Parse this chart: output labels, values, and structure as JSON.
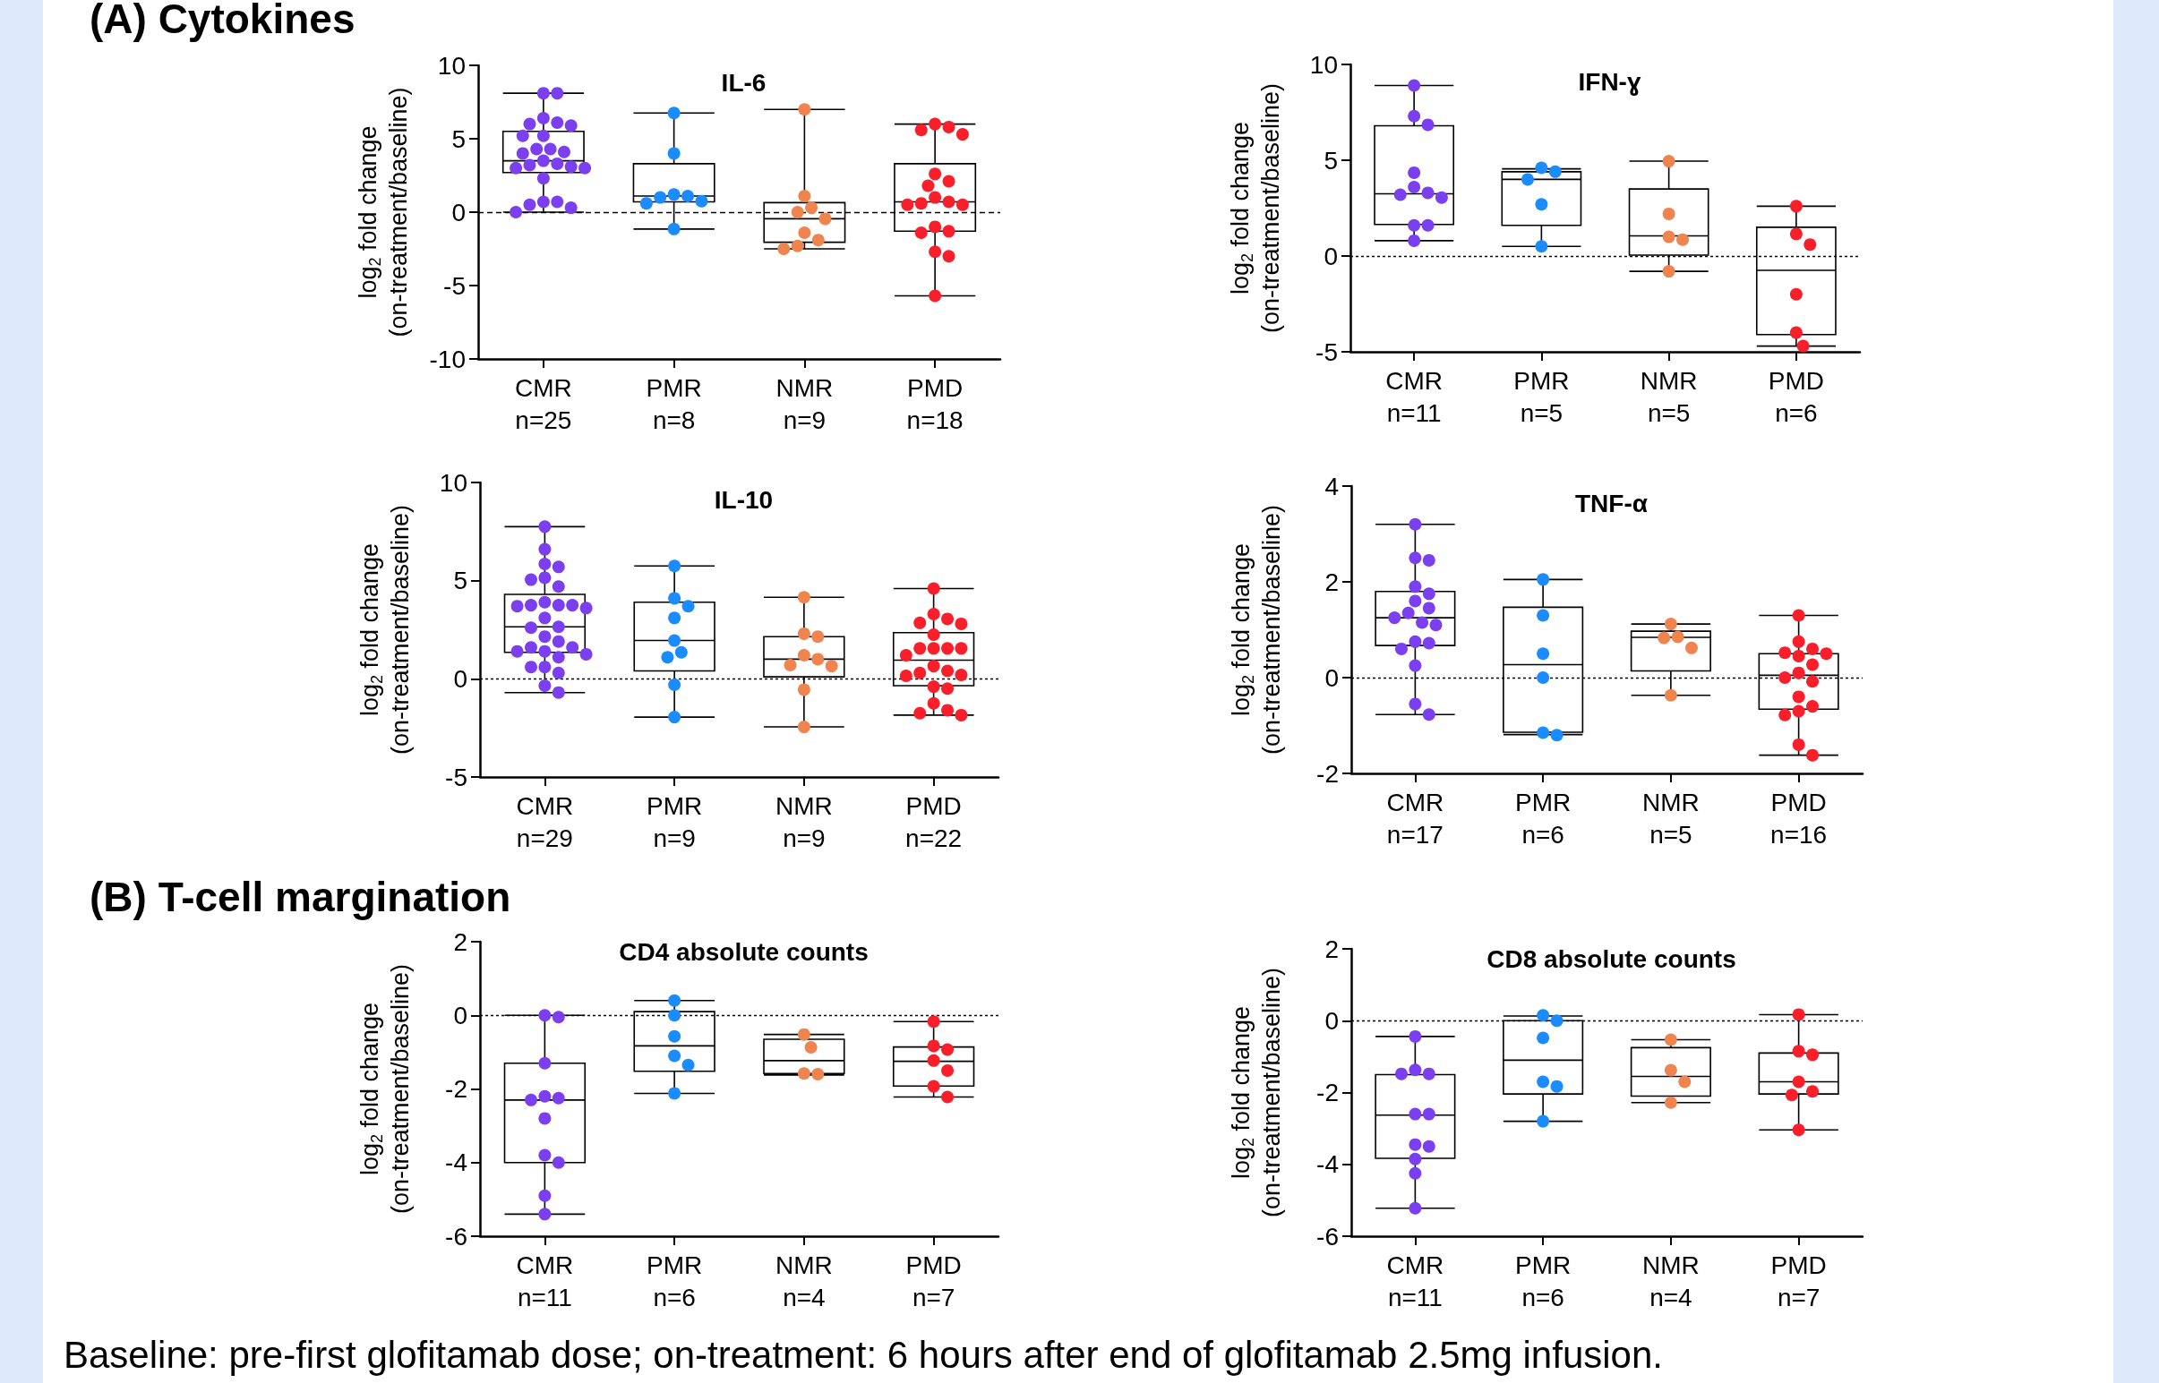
{
  "chart_data": [
    {
      "type": "box",
      "title": "IL-6",
      "subtitle": "(A) Cytokines",
      "ylabel": "log$_{2}$ fold change\n(on-treatment/baseline)",
      "categories": [
        "CMR\nn=25",
        "PMR\nn=8",
        "NMR\nn=9",
        "PMD\nn=18"
      ],
      "boxes": [
        {
          "low": 0.0,
          "q1": 2.7,
          "median": 3.5,
          "q3": 5.5,
          "high": 8.1
        },
        {
          "low": -1.15,
          "q1": 0.7,
          "median": 1.1,
          "q3": 3.3,
          "high": 6.75
        },
        {
          "low": -2.5,
          "q1": -2.05,
          "median": -0.45,
          "q3": 0.65,
          "high": 7.0
        },
        {
          "low": -5.7,
          "q1": -1.3,
          "median": 0.7,
          "q3": 3.3,
          "high": 6.0
        }
      ],
      "series": [
        {
          "type": "scatter",
          "color": "#7b3ff0",
          "x": [
            "CMR\nn=25",
            "CMR\nn=25",
            "CMR\nn=25",
            "CMR\nn=25",
            "CMR\nn=25",
            "CMR\nn=25",
            "CMR\nn=25",
            "CMR\nn=25",
            "CMR\nn=25",
            "CMR\nn=25",
            "CMR\nn=25",
            "CMR\nn=25",
            "CMR\nn=25",
            "CMR\nn=25",
            "CMR\nn=25",
            "CMR\nn=25",
            "CMR\nn=25",
            "CMR\nn=25",
            "CMR\nn=25",
            "CMR\nn=25",
            "CMR\nn=25",
            "CMR\nn=25",
            "CMR\nn=25",
            "CMR\nn=25"
          ],
          "values": [
            8.1,
            8.1,
            6.1,
            6.4,
            5.9,
            6.0,
            5.2,
            5.2,
            4.1,
            4.3,
            4.0,
            4.3,
            3.1,
            3.3,
            3.0,
            3.0,
            3.2,
            3.5,
            2.3,
            0.7,
            0.5,
            0.3,
            0.7,
            0.0
          ]
        },
        {
          "type": "scatter",
          "color": "#1a8cff",
          "x": [
            "PMR\nn=8",
            "PMR\nn=8",
            "PMR\nn=8",
            "PMR\nn=8",
            "PMR\nn=8",
            "PMR\nn=8",
            "PMR\nn=8",
            "PMR\nn=8"
          ],
          "values": [
            6.75,
            4.0,
            1.1,
            1.2,
            1.0,
            0.75,
            0.6,
            -1.15
          ]
        },
        {
          "type": "scatter",
          "color": "#f0844f",
          "x": [
            "NMR\nn=9",
            "NMR\nn=9",
            "NMR\nn=9",
            "NMR\nn=9",
            "NMR\nn=9",
            "NMR\nn=9",
            "NMR\nn=9",
            "NMR\nn=9",
            "NMR\nn=9"
          ],
          "values": [
            7.0,
            1.1,
            0.3,
            0.0,
            -0.45,
            -1.4,
            -1.9,
            -2.3,
            -2.5
          ]
        },
        {
          "type": "scatter",
          "color": "#f81f2a",
          "x": [
            "PMD\nn=18",
            "PMD\nn=18",
            "PMD\nn=18",
            "PMD\nn=18",
            "PMD\nn=18",
            "PMD\nn=18",
            "PMD\nn=18",
            "PMD\nn=18",
            "PMD\nn=18",
            "PMD\nn=18",
            "PMD\nn=18",
            "PMD\nn=18",
            "PMD\nn=18",
            "PMD\nn=18",
            "PMD\nn=18",
            "PMD\nn=18",
            "PMD\nn=18",
            "PMD\nn=18"
          ],
          "values": [
            6.0,
            5.8,
            5.6,
            5.3,
            2.6,
            1.8,
            2.1,
            1.0,
            0.7,
            0.5,
            0.5,
            0.6,
            -1.0,
            -1.4,
            -1.3,
            -3.0,
            -2.7,
            -5.7
          ]
        }
      ],
      "ylim": [
        -10,
        10
      ],
      "yticks": [
        -10,
        -5,
        0,
        5,
        10
      ],
      "ref_lines": [
        {
          "axis": "y",
          "value": 0,
          "line_style": "dashed"
        }
      ],
      "marker": "circle"
    },
    {
      "type": "box",
      "title": "IFN-ɣ",
      "ylabel": "log$_{2}$ fold change\n(on-treatment/baseline)",
      "categories": [
        "CMR\nn=11",
        "PMR\nn=5",
        "NMR\nn=5",
        "PMD\nn=6"
      ],
      "boxes": [
        {
          "low": 0.8,
          "q1": 1.65,
          "median": 3.25,
          "q3": 6.8,
          "high": 8.9
        },
        {
          "low": 0.5,
          "q1": 1.6,
          "median": 4.0,
          "q3": 4.4,
          "high": 4.55
        },
        {
          "low": -0.8,
          "q1": 0.05,
          "median": 1.05,
          "q3": 3.5,
          "high": 4.95
        },
        {
          "low": -4.7,
          "q1": -4.1,
          "median": -0.75,
          "q3": 1.5,
          "high": 2.6
        }
      ],
      "series": [
        {
          "type": "scatter",
          "color": "#7b3ff0",
          "x": [
            "CMR\nn=11",
            "CMR\nn=11",
            "CMR\nn=11",
            "CMR\nn=11",
            "CMR\nn=11",
            "CMR\nn=11",
            "CMR\nn=11",
            "CMR\nn=11",
            "CMR\nn=11",
            "CMR\nn=11",
            "CMR\nn=11"
          ],
          "values": [
            8.9,
            7.3,
            6.85,
            4.35,
            3.6,
            3.2,
            3.05,
            3.3,
            1.6,
            1.6,
            0.8
          ]
        },
        {
          "type": "scatter",
          "color": "#1a8cff",
          "x": [
            "PMR\nn=5",
            "PMR\nn=5",
            "PMR\nn=5",
            "PMR\nn=5",
            "PMR\nn=5"
          ],
          "values": [
            4.6,
            4.4,
            4.0,
            2.7,
            0.5
          ]
        },
        {
          "type": "scatter",
          "color": "#f0844f",
          "x": [
            "NMR\nn=5",
            "NMR\nn=5",
            "NMR\nn=5",
            "NMR\nn=5",
            "NMR\nn=5"
          ],
          "values": [
            4.95,
            2.2,
            1.0,
            0.85,
            -0.8
          ]
        },
        {
          "type": "scatter",
          "color": "#f81f2a",
          "x": [
            "PMD\nn=6",
            "PMD\nn=6",
            "PMD\nn=6",
            "PMD\nn=6",
            "PMD\nn=6",
            "PMD\nn=6"
          ],
          "values": [
            2.6,
            1.15,
            0.6,
            -2.0,
            -4.0,
            -4.7
          ]
        }
      ],
      "ylim": [
        -5,
        10
      ],
      "yticks": [
        -5,
        0,
        5,
        10
      ],
      "ref_lines": [
        {
          "axis": "y",
          "value": 0,
          "line_style": "dotted"
        }
      ],
      "marker": "circle"
    },
    {
      "type": "box",
      "title": "IL-10",
      "ylabel": "log$_{2}$ fold change\n(on-treatment/baseline)",
      "categories": [
        "CMR\nn=29",
        "PMR\nn=9",
        "NMR\nn=9",
        "PMD\nn=22"
      ],
      "boxes": [
        {
          "low": -0.7,
          "q1": 1.35,
          "median": 2.65,
          "q3": 4.3,
          "high": 7.75
        },
        {
          "low": -1.95,
          "q1": 0.4,
          "median": 1.95,
          "q3": 3.9,
          "high": 5.75
        },
        {
          "low": -2.45,
          "q1": 0.1,
          "median": 1.0,
          "q3": 2.15,
          "high": 4.15
        },
        {
          "low": -1.85,
          "q1": -0.35,
          "median": 0.95,
          "q3": 2.35,
          "high": 4.6
        }
      ],
      "series": [
        {
          "type": "scatter",
          "color": "#7b3ff0",
          "x": [
            "CMR\nn=29",
            "CMR\nn=29",
            "CMR\nn=29",
            "CMR\nn=29",
            "CMR\nn=29",
            "CMR\nn=29",
            "CMR\nn=29",
            "CMR\nn=29",
            "CMR\nn=29",
            "CMR\nn=29",
            "CMR\nn=29",
            "CMR\nn=29",
            "CMR\nn=29",
            "CMR\nn=29",
            "CMR\nn=29",
            "CMR\nn=29",
            "CMR\nn=29",
            "CMR\nn=29",
            "CMR\nn=29",
            "CMR\nn=29",
            "CMR\nn=29",
            "CMR\nn=29",
            "CMR\nn=29",
            "CMR\nn=29",
            "CMR\nn=29",
            "CMR\nn=29",
            "CMR\nn=29",
            "CMR\nn=29",
            "CMR\nn=29"
          ],
          "values": [
            7.75,
            6.6,
            5.85,
            5.7,
            5.15,
            5.05,
            4.7,
            3.75,
            3.75,
            3.6,
            3.7,
            3.9,
            3.75,
            3.1,
            2.6,
            2.65,
            2.15,
            1.9,
            1.6,
            1.4,
            1.25,
            1.6,
            1.4,
            1.1,
            0.6,
            0.6,
            0.3,
            -0.35,
            -0.7
          ]
        },
        {
          "type": "scatter",
          "color": "#1a8cff",
          "x": [
            "PMR\nn=9",
            "PMR\nn=9",
            "PMR\nn=9",
            "PMR\nn=9",
            "PMR\nn=9",
            "PMR\nn=9",
            "PMR\nn=9",
            "PMR\nn=9",
            "PMR\nn=9"
          ],
          "values": [
            5.75,
            4.1,
            3.7,
            3.1,
            1.95,
            1.35,
            1.1,
            -0.3,
            -1.95
          ]
        },
        {
          "type": "scatter",
          "color": "#f0844f",
          "x": [
            "NMR\nn=9",
            "NMR\nn=9",
            "NMR\nn=9",
            "NMR\nn=9",
            "NMR\nn=9",
            "NMR\nn=9",
            "NMR\nn=9",
            "NMR\nn=9",
            "NMR\nn=9"
          ],
          "values": [
            4.15,
            2.15,
            2.3,
            1.2,
            1.0,
            0.65,
            0.7,
            -0.55,
            -2.45
          ]
        },
        {
          "type": "scatter",
          "color": "#f81f2a",
          "x": [
            "PMD\nn=22",
            "PMD\nn=22",
            "PMD\nn=22",
            "PMD\nn=22",
            "PMD\nn=22",
            "PMD\nn=22",
            "PMD\nn=22",
            "PMD\nn=22",
            "PMD\nn=22",
            "PMD\nn=22",
            "PMD\nn=22",
            "PMD\nn=22",
            "PMD\nn=22",
            "PMD\nn=22",
            "PMD\nn=22",
            "PMD\nn=22",
            "PMD\nn=22",
            "PMD\nn=22",
            "PMD\nn=22",
            "PMD\nn=22",
            "PMD\nn=22",
            "PMD\nn=22"
          ],
          "values": [
            4.6,
            3.05,
            3.3,
            2.8,
            2.85,
            2.25,
            1.55,
            1.55,
            1.2,
            1.55,
            1.55,
            0.65,
            0.3,
            0.15,
            0.2,
            0.4,
            -0.4,
            -0.5,
            -1.25,
            -1.6,
            -1.75,
            -1.85
          ]
        }
      ],
      "ylim": [
        -5,
        10
      ],
      "yticks": [
        -5,
        0,
        5,
        10
      ],
      "ref_lines": [
        {
          "axis": "y",
          "value": 0,
          "line_style": "dotted"
        }
      ],
      "marker": "circle"
    },
    {
      "type": "box",
      "title": "TNF-α",
      "ylabel": "log$_{2}$ fold change\n(on-treatment/baseline)",
      "categories": [
        "CMR\nn=17",
        "PMR\nn=6",
        "NMR\nn=5",
        "PMD\nn=16"
      ],
      "boxes": [
        {
          "low": -0.77,
          "q1": 0.67,
          "median": 1.25,
          "q3": 1.8,
          "high": 3.2
        },
        {
          "low": -1.19,
          "q1": -1.14,
          "median": 0.27,
          "q3": 1.47,
          "high": 2.05
        },
        {
          "low": -0.37,
          "q1": 0.14,
          "median": 0.84,
          "q3": 0.97,
          "high": 1.12
        },
        {
          "low": -1.62,
          "q1": -0.66,
          "median": 0.05,
          "q3": 0.5,
          "high": 1.3
        }
      ],
      "series": [
        {
          "type": "scatter",
          "color": "#7b3ff0",
          "x": [
            "CMR\nn=17",
            "CMR\nn=17",
            "CMR\nn=17",
            "CMR\nn=17",
            "CMR\nn=17",
            "CMR\nn=17",
            "CMR\nn=17",
            "CMR\nn=17",
            "CMR\nn=17",
            "CMR\nn=17",
            "CMR\nn=17",
            "CMR\nn=17",
            "CMR\nn=17",
            "CMR\nn=17",
            "CMR\nn=17",
            "CMR\nn=17",
            "CMR\nn=17"
          ],
          "values": [
            3.2,
            2.5,
            2.45,
            1.9,
            1.75,
            1.6,
            1.45,
            1.35,
            1.25,
            1.15,
            1.1,
            0.75,
            0.72,
            0.6,
            0.25,
            -0.55,
            -0.77
          ]
        },
        {
          "type": "scatter",
          "color": "#1a8cff",
          "x": [
            "PMR\nn=6",
            "PMR\nn=6",
            "PMR\nn=6",
            "PMR\nn=6",
            "PMR\nn=6",
            "PMR\nn=6"
          ],
          "values": [
            2.05,
            1.3,
            0.5,
            0.0,
            -1.2,
            -1.15
          ]
        },
        {
          "type": "scatter",
          "color": "#f0844f",
          "x": [
            "NMR\nn=5",
            "NMR\nn=5",
            "NMR\nn=5",
            "NMR\nn=5",
            "NMR\nn=5"
          ],
          "values": [
            1.12,
            0.83,
            0.85,
            0.62,
            -0.37
          ]
        },
        {
          "type": "scatter",
          "color": "#f81f2a",
          "x": [
            "PMD\nn=16",
            "PMD\nn=16",
            "PMD\nn=16",
            "PMD\nn=16",
            "PMD\nn=16",
            "PMD\nn=16",
            "PMD\nn=16",
            "PMD\nn=16",
            "PMD\nn=16",
            "PMD\nn=16",
            "PMD\nn=16",
            "PMD\nn=16",
            "PMD\nn=16",
            "PMD\nn=16",
            "PMD\nn=16",
            "PMD\nn=16"
          ],
          "values": [
            1.3,
            0.75,
            0.6,
            0.52,
            0.5,
            0.45,
            0.27,
            0.1,
            0.0,
            -0.08,
            -0.4,
            -0.6,
            -0.7,
            -0.78,
            -1.4,
            -1.62
          ]
        }
      ],
      "ylim": [
        -2,
        4
      ],
      "yticks": [
        -2,
        0,
        2,
        4
      ],
      "ref_lines": [
        {
          "axis": "y",
          "value": 0,
          "line_style": "dotted"
        }
      ],
      "marker": "circle"
    },
    {
      "type": "box",
      "title": "CD4 absolute counts",
      "subtitle": "(B) T-cell margination",
      "ylabel": "log$_{2}$ fold change\n(on-treatment/baseline)",
      "categories": [
        "CMR\nn=11",
        "PMR\nn=6",
        "NMR\nn=4",
        "PMD\nn=7"
      ],
      "boxes": [
        {
          "low": -5.4,
          "q1": -4.0,
          "median": -2.3,
          "q3": -1.3,
          "high": 0.0
        },
        {
          "low": -2.12,
          "q1": -1.52,
          "median": -0.83,
          "q3": 0.1,
          "high": 0.4
        },
        {
          "low": -1.62,
          "q1": -1.58,
          "median": -1.23,
          "q3": -0.65,
          "high": -0.52
        },
        {
          "low": -2.22,
          "q1": -1.92,
          "median": -1.25,
          "q3": -0.86,
          "high": -0.17
        }
      ],
      "series": [
        {
          "type": "scatter",
          "color": "#7b3ff0",
          "x": [
            "CMR\nn=11",
            "CMR\nn=11",
            "CMR\nn=11",
            "CMR\nn=11",
            "CMR\nn=11",
            "CMR\nn=11",
            "CMR\nn=11",
            "CMR\nn=11",
            "CMR\nn=11",
            "CMR\nn=11",
            "CMR\nn=11"
          ],
          "values": [
            0.0,
            -0.05,
            -1.3,
            -2.25,
            -2.3,
            -2.2,
            -2.8,
            -3.8,
            -4.0,
            -4.9,
            -5.4
          ]
        },
        {
          "type": "scatter",
          "color": "#1a8cff",
          "x": [
            "PMR\nn=6",
            "PMR\nn=6",
            "PMR\nn=6",
            "PMR\nn=6",
            "PMR\nn=6",
            "PMR\nn=6"
          ],
          "values": [
            0.4,
            0.0,
            -0.57,
            -1.1,
            -1.35,
            -2.12
          ]
        },
        {
          "type": "scatter",
          "color": "#f0844f",
          "x": [
            "NMR\nn=4",
            "NMR\nn=4",
            "NMR\nn=4",
            "NMR\nn=4"
          ],
          "values": [
            -0.52,
            -0.87,
            -1.58,
            -1.6
          ]
        },
        {
          "type": "scatter",
          "color": "#f81f2a",
          "x": [
            "PMD\nn=7",
            "PMD\nn=7",
            "PMD\nn=7",
            "PMD\nn=7",
            "PMD\nn=7",
            "PMD\nn=7",
            "PMD\nn=7"
          ],
          "values": [
            -0.17,
            -0.83,
            -0.93,
            -1.23,
            -1.5,
            -1.93,
            -2.22
          ]
        }
      ],
      "ylim": [
        -6,
        2
      ],
      "yticks": [
        -6,
        -4,
        -2,
        0,
        2
      ],
      "ref_lines": [
        {
          "axis": "y",
          "value": 0,
          "line_style": "dotted"
        }
      ],
      "marker": "circle"
    },
    {
      "type": "box",
      "title": "CD8 absolute counts",
      "ylabel": "log$_{2}$ fold change\n(on-treatment/baseline)",
      "categories": [
        "CMR\nn=11",
        "PMR\nn=6",
        "NMR\nn=4",
        "PMD\nn=7"
      ],
      "boxes": [
        {
          "low": -5.22,
          "q1": -3.83,
          "median": -2.63,
          "q3": -1.5,
          "high": -0.44
        },
        {
          "low": -2.8,
          "q1": -2.04,
          "median": -1.1,
          "q3": 0.0,
          "high": 0.13
        },
        {
          "low": -2.28,
          "q1": -2.1,
          "median": -1.55,
          "q3": -0.75,
          "high": -0.53
        },
        {
          "low": -3.04,
          "q1": -2.04,
          "median": -1.7,
          "q3": -0.9,
          "high": 0.17
        }
      ],
      "series": [
        {
          "type": "scatter",
          "color": "#7b3ff0",
          "x": [
            "CMR\nn=11",
            "CMR\nn=11",
            "CMR\nn=11",
            "CMR\nn=11",
            "CMR\nn=11",
            "CMR\nn=11",
            "CMR\nn=11",
            "CMR\nn=11",
            "CMR\nn=11",
            "CMR\nn=11",
            "CMR\nn=11"
          ],
          "values": [
            -0.44,
            -1.37,
            -1.48,
            -1.48,
            -2.6,
            -2.6,
            -3.45,
            -3.5,
            -3.85,
            -4.25,
            -5.22
          ]
        },
        {
          "type": "scatter",
          "color": "#1a8cff",
          "x": [
            "PMR\nn=6",
            "PMR\nn=6",
            "PMR\nn=6",
            "PMR\nn=6",
            "PMR\nn=6",
            "PMR\nn=6"
          ],
          "values": [
            0.15,
            0.0,
            -0.48,
            -1.7,
            -1.83,
            -2.8
          ]
        },
        {
          "type": "scatter",
          "color": "#f0844f",
          "x": [
            "NMR\nn=4",
            "NMR\nn=4",
            "NMR\nn=4",
            "NMR\nn=4"
          ],
          "values": [
            -0.53,
            -1.38,
            -1.7,
            -2.28
          ]
        },
        {
          "type": "scatter",
          "color": "#f81f2a",
          "x": [
            "PMD\nn=7",
            "PMD\nn=7",
            "PMD\nn=7",
            "PMD\nn=7",
            "PMD\nn=7",
            "PMD\nn=7",
            "PMD\nn=7"
          ],
          "values": [
            0.17,
            -0.85,
            -0.95,
            -1.7,
            -1.97,
            -2.07,
            -3.04
          ]
        }
      ],
      "ylim": [
        -6,
        2
      ],
      "yticks": [
        -6,
        -4,
        -2,
        0,
        2
      ],
      "ref_lines": [
        {
          "axis": "y",
          "value": 0,
          "line_style": "dotted"
        }
      ],
      "marker": "circle",
      "annotations": [
        "Baseline: pre-first glofitamab dose; on-treatment: 6 hours after end of glofitamab 2.5mg infusion."
      ]
    }
  ]
}
